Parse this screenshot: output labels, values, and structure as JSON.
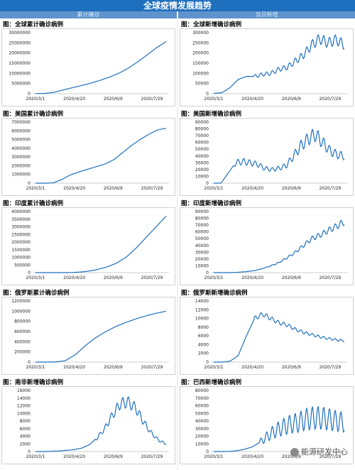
{
  "header": {
    "title": "全球疫情发展趋势",
    "left_label": "累计确诊",
    "right_label": "当日新增"
  },
  "watermark": "能源研发中心",
  "colors": {
    "line": "#1f6fbf",
    "banner": "#1f6fbf",
    "sub": "#5e93cc"
  },
  "chart_data": [
    {
      "type": "line",
      "title": "图：全球累计确诊病例",
      "xlabel": "",
      "ylabel": "",
      "x_ticks": [
        "2020/3/1",
        "2020/4/20",
        "2020/6/9",
        "2020/7/29"
      ],
      "ylim": [
        0,
        30000000
      ],
      "y_ticks": [
        0,
        5000000,
        10000000,
        15000000,
        20000000,
        25000000,
        30000000
      ],
      "series": [
        {
          "values": [
            90000,
            140000,
            700000,
            1900000,
            3000000,
            4100000,
            5300000,
            6700000,
            8300000,
            10200000,
            12700000,
            15800000,
            19200000,
            22700000,
            25600000
          ]
        }
      ],
      "noise": 0,
      "noise_start": 0
    },
    {
      "type": "line",
      "title": "图：全球新增确诊病例",
      "xlabel": "",
      "ylabel": "",
      "x_ticks": [
        "2020/3/1",
        "2020/4/20",
        "2020/6/9",
        "2020/7/29"
      ],
      "ylim": [
        0,
        300000
      ],
      "y_ticks": [
        0,
        50000,
        100000,
        150000,
        200000,
        250000,
        300000
      ],
      "series": [
        {
          "values": [
            2000,
            5000,
            30000,
            70000,
            85000,
            85000,
            95000,
            100000,
            120000,
            130000,
            160000,
            190000,
            240000,
            270000,
            250000,
            265000,
            240000
          ]
        }
      ],
      "noise": 0.1,
      "noise_start": 0.3
    },
    {
      "type": "line",
      "title": "图：美国累计确诊病例",
      "xlabel": "",
      "ylabel": "",
      "x_ticks": [
        "2020/3/1",
        "2020/4/20",
        "2020/6/9",
        "2020/7/29"
      ],
      "ylim": [
        0,
        7000000
      ],
      "y_ticks": [
        0,
        1000000,
        2000000,
        3000000,
        4000000,
        5000000,
        6000000,
        7000000
      ],
      "series": [
        {
          "values": [
            0,
            0,
            30000,
            400000,
            950000,
            1300000,
            1600000,
            1900000,
            2200000,
            2700000,
            3500000,
            4300000,
            5000000,
            5600000,
            6100000,
            6300000
          ]
        }
      ],
      "noise": 0,
      "noise_start": 0
    },
    {
      "type": "line",
      "title": "图：美国新增确诊病例",
      "xlabel": "",
      "ylabel": "",
      "x_ticks": [
        "2020/3/1",
        "2020/4/20",
        "2020/6/9",
        "2020/7/29"
      ],
      "ylim": [
        0,
        90000
      ],
      "y_ticks": [
        0,
        10000,
        20000,
        30000,
        40000,
        50000,
        60000,
        70000,
        80000,
        90000
      ],
      "series": [
        {
          "values": [
            0,
            0,
            15000,
            30000,
            32000,
            30000,
            28000,
            22000,
            20000,
            22000,
            26000,
            40000,
            55000,
            65000,
            72000,
            60000,
            48000,
            42000,
            40000
          ]
        }
      ],
      "noise": 0.15,
      "noise_start": 0.15
    },
    {
      "type": "line",
      "title": "图：印度累计确诊病例",
      "xlabel": "",
      "ylabel": "",
      "x_ticks": [
        "2020/3/1",
        "2020/4/20",
        "2020/6/9",
        "2020/7/29"
      ],
      "ylim": [
        0,
        4000000
      ],
      "y_ticks": [
        0,
        500000,
        1000000,
        1500000,
        2000000,
        2500000,
        3000000,
        3500000,
        4000000
      ],
      "series": [
        {
          "values": [
            0,
            0,
            0,
            2000,
            20000,
            70000,
            180000,
            350000,
            600000,
            1000000,
            1600000,
            2300000,
            3000000,
            3700000
          ]
        }
      ],
      "noise": 0,
      "noise_start": 0
    },
    {
      "type": "line",
      "title": "图：印度新增确诊病例",
      "xlabel": "",
      "ylabel": "",
      "x_ticks": [
        "2020/3/1",
        "2020/4/20",
        "2020/6/9",
        "2020/7/29"
      ],
      "ylim": [
        0,
        90000
      ],
      "y_ticks": [
        0,
        10000,
        20000,
        30000,
        40000,
        50000,
        60000,
        70000,
        80000,
        90000
      ],
      "series": [
        {
          "values": [
            0,
            0,
            0,
            500,
            1500,
            3000,
            6000,
            10000,
            15000,
            22000,
            30000,
            40000,
            50000,
            55000,
            62000,
            68000,
            75000
          ]
        }
      ],
      "noise": 0.07,
      "noise_start": 0.4
    },
    {
      "type": "line",
      "title": "图：俄罗斯累计确诊病例",
      "xlabel": "",
      "ylabel": "",
      "x_ticks": [
        "2020/3/1",
        "2020/4/20",
        "2020/6/9",
        "2020/7/29"
      ],
      "ylim": [
        0,
        1200000
      ],
      "y_ticks": [
        0,
        200000,
        400000,
        600000,
        800000,
        1000000,
        1200000
      ],
      "series": [
        {
          "values": [
            0,
            0,
            2000,
            30000,
            150000,
            330000,
            480000,
            600000,
            700000,
            780000,
            850000,
            910000,
            960000,
            1000000
          ]
        }
      ],
      "noise": 0,
      "noise_start": 0
    },
    {
      "type": "line",
      "title": "图：俄罗斯新增确诊病例",
      "xlabel": "",
      "ylabel": "",
      "x_ticks": [
        "2020/3/1",
        "2020/4/20",
        "2020/6/9",
        "2020/7/29"
      ],
      "ylim": [
        0,
        14000
      ],
      "y_ticks": [
        0,
        2000,
        4000,
        6000,
        8000,
        10000,
        12000,
        14000
      ],
      "series": [
        {
          "values": [
            0,
            0,
            200,
            1500,
            6000,
            10000,
            11000,
            10000,
            9000,
            8500,
            7500,
            6800,
            6300,
            5800,
            5400,
            5100,
            4900
          ]
        }
      ],
      "noise": 0.05,
      "noise_start": 0.3
    },
    {
      "type": "line",
      "title": "图：南非新增确诊病例",
      "xlabel": "",
      "ylabel": "",
      "x_ticks": [
        "2020/3/1",
        "2020/4/20",
        "2020/6/9",
        "2020/7/29"
      ],
      "ylim": [
        0,
        16000
      ],
      "y_ticks": [
        0,
        2000,
        4000,
        6000,
        8000,
        10000,
        12000,
        14000,
        16000
      ],
      "series": [
        {
          "values": [
            0,
            0,
            50,
            150,
            300,
            500,
            900,
            1800,
            3500,
            6000,
            9500,
            12500,
            13000,
            11500,
            8000,
            5000,
            3000,
            2000
          ]
        }
      ],
      "noise": 0.12,
      "noise_start": 0.45
    },
    {
      "type": "line",
      "title": "图：巴西新增确诊病例",
      "xlabel": "",
      "ylabel": "",
      "x_ticks": [
        "2020/3/1",
        "2020/4/20",
        "2020/6/9",
        "2020/7/29"
      ],
      "ylim": [
        0,
        80000
      ],
      "y_ticks": [
        0,
        10000,
        20000,
        30000,
        40000,
        50000,
        60000,
        70000,
        80000
      ],
      "series": [
        {
          "values": [
            0,
            0,
            200,
            1000,
            3000,
            6000,
            12000,
            20000,
            27000,
            32000,
            36000,
            38000,
            42000,
            44000,
            44000,
            42000,
            40000,
            38000
          ]
        }
      ],
      "noise": 0.35,
      "noise_start": 0.35
    }
  ]
}
